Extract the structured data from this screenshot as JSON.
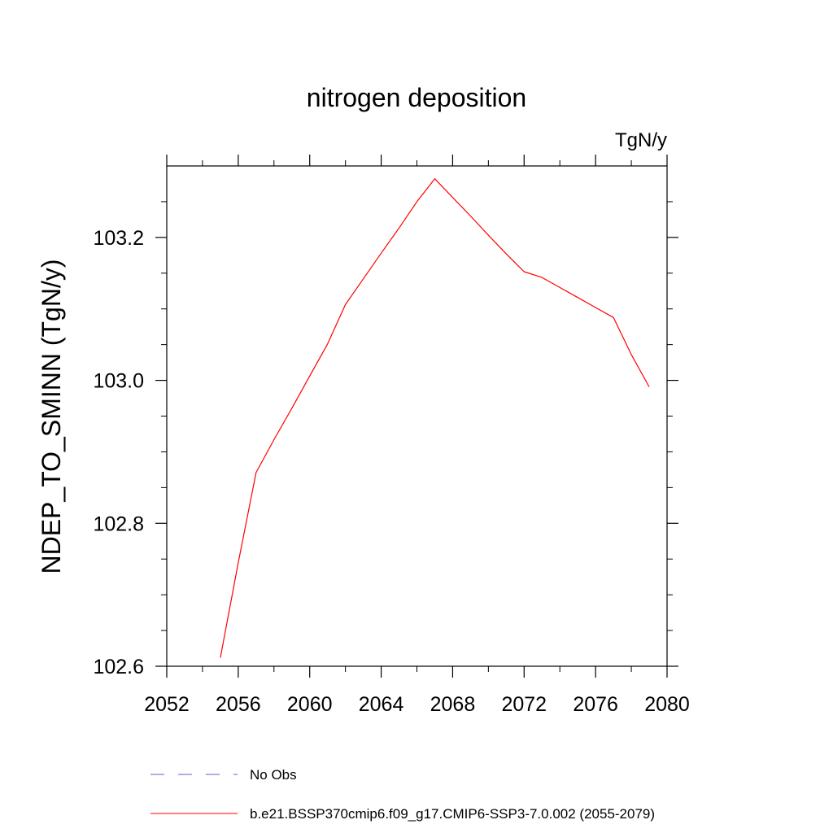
{
  "chart_data": {
    "type": "line",
    "title": "nitrogen deposition",
    "units_label": "TgN/y",
    "ylabel": "NDEP_TO_SMINN  (TgN/y)",
    "xlabel": "",
    "xlim": [
      2052,
      2080
    ],
    "ylim": [
      102.6,
      103.3
    ],
    "x_ticks": [
      "2052",
      "2056",
      "2060",
      "2064",
      "2068",
      "2072",
      "2076",
      "2080"
    ],
    "y_ticks": [
      "102.6",
      "102.8",
      "103.0",
      "103.2"
    ],
    "series": [
      {
        "name": "b.e21.BSSP370cmip6.f09_g17.CMIP6-SSP3-7.0.002 (2055-2079)",
        "color": "#ff0000",
        "x": [
          2055,
          2056,
          2057,
          2058,
          2059,
          2060,
          2061,
          2062,
          2063,
          2064,
          2065,
          2066,
          2067,
          2068,
          2069,
          2070,
          2071,
          2072,
          2073,
          2074,
          2075,
          2076,
          2077,
          2078,
          2079
        ],
        "y": [
          102.612,
          102.745,
          102.871,
          102.917,
          102.961,
          103.006,
          103.051,
          103.106,
          103.142,
          103.178,
          103.213,
          103.25,
          103.282,
          103.256,
          103.23,
          103.203,
          103.177,
          103.152,
          103.144,
          103.13,
          103.116,
          103.102,
          103.088,
          103.036,
          102.991
        ]
      }
    ],
    "legend": [
      {
        "label": "No Obs",
        "color": "#6a5acd",
        "dashed": true
      },
      {
        "label": "b.e21.BSSP370cmip6.f09_g17.CMIP6-SSP3-7.0.002 (2055-2079)",
        "color": "#ff0000",
        "dashed": false
      }
    ],
    "legend_position": "bottom",
    "grid": false
  }
}
